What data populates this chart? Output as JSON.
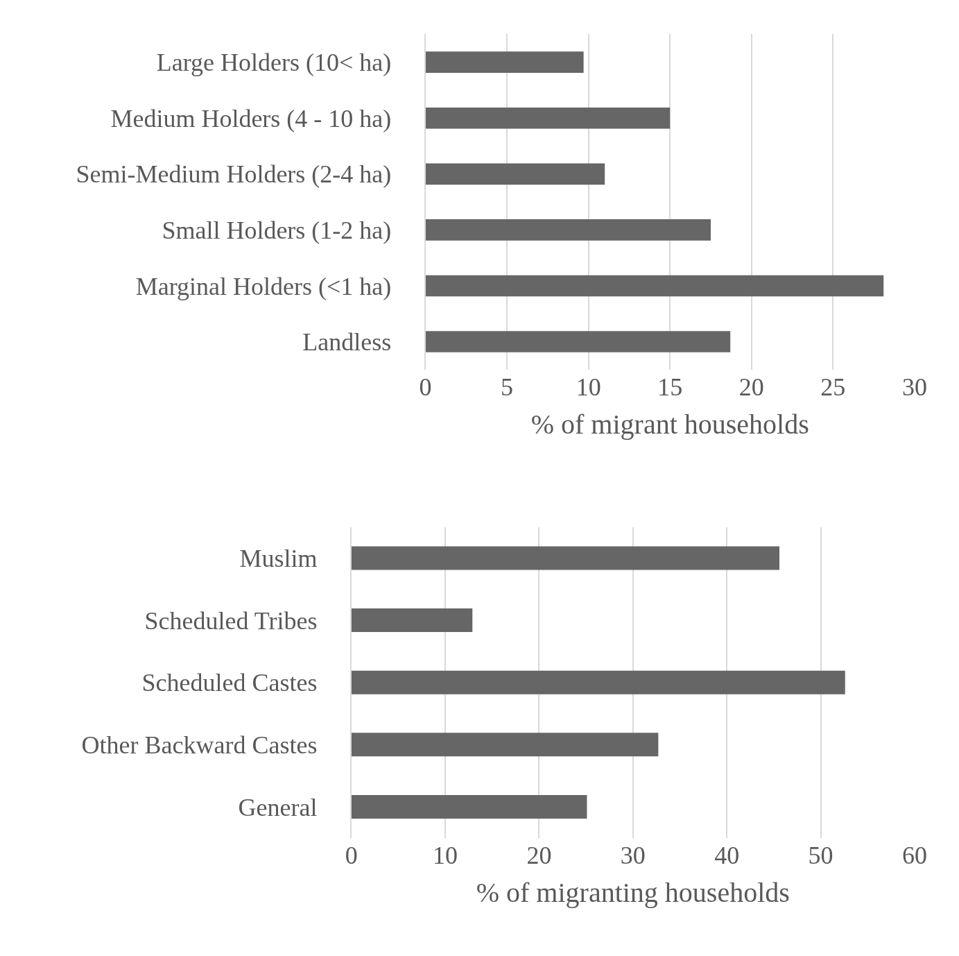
{
  "chart_data": [
    {
      "type": "bar",
      "orientation": "horizontal",
      "categories": [
        "Large Holders (10< ha)",
        "Medium Holders (4 - 10 ha)",
        "Semi-Medium Holders (2-4 ha)",
        "Small Holders (1-2 ha)",
        "Marginal Holders (<1 ha)",
        "Landless"
      ],
      "values": [
        9.7,
        15.0,
        11.0,
        17.5,
        28.1,
        18.7
      ],
      "color": "#666666",
      "xlabel": "% of migrant households",
      "xlim": [
        0,
        30
      ],
      "xticks": [
        0,
        5,
        10,
        15,
        20,
        25,
        30
      ],
      "grid": "x"
    },
    {
      "type": "bar",
      "orientation": "horizontal",
      "categories": [
        "Muslim",
        "Scheduled Tribes",
        "Scheduled Castes",
        "Other Backward Castes",
        "General"
      ],
      "values": [
        45.6,
        12.9,
        52.6,
        32.7,
        25.1
      ],
      "color": "#666666",
      "xlabel": "% of migranting households",
      "xlim": [
        0,
        60
      ],
      "xticks": [
        0,
        10,
        20,
        30,
        40,
        50,
        60
      ],
      "grid": "x"
    }
  ]
}
